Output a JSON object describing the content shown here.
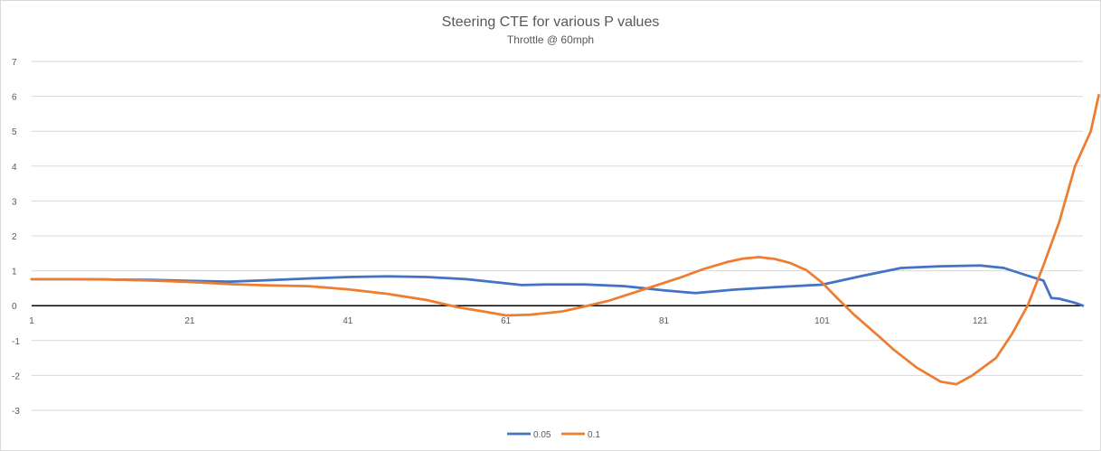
{
  "chart_data": {
    "type": "line",
    "title": "Steering CTE for various P values",
    "subtitle": "Throttle @ 60mph",
    "xlabel": "",
    "ylabel": "",
    "x_range": [
      1,
      134
    ],
    "ylim": [
      -3,
      7
    ],
    "y_ticks": [
      7,
      6,
      5,
      4,
      3,
      2,
      1,
      0,
      -1,
      -2,
      -3
    ],
    "x_tick_labels": [
      1,
      21,
      41,
      61,
      81,
      101,
      121
    ],
    "grid": true,
    "legend_position": "bottom",
    "series": [
      {
        "name": "0.05",
        "color": "#4472c4",
        "points": [
          [
            1,
            0.76
          ],
          [
            6,
            0.76
          ],
          [
            11,
            0.75
          ],
          [
            16,
            0.74
          ],
          [
            21,
            0.71
          ],
          [
            26,
            0.69
          ],
          [
            31,
            0.73
          ],
          [
            36,
            0.78
          ],
          [
            41,
            0.82
          ],
          [
            46,
            0.84
          ],
          [
            51,
            0.82
          ],
          [
            56,
            0.76
          ],
          [
            61,
            0.64
          ],
          [
            63,
            0.59
          ],
          [
            66,
            0.61
          ],
          [
            71,
            0.61
          ],
          [
            76,
            0.56
          ],
          [
            81,
            0.44
          ],
          [
            85,
            0.36
          ],
          [
            90,
            0.46
          ],
          [
            95,
            0.53
          ],
          [
            101,
            0.6
          ],
          [
            106,
            0.85
          ],
          [
            111,
            1.08
          ],
          [
            116,
            1.13
          ],
          [
            121,
            1.15
          ],
          [
            124,
            1.08
          ],
          [
            127,
            0.86
          ],
          [
            129,
            0.72
          ],
          [
            130,
            0.22
          ],
          [
            131,
            0.2
          ],
          [
            133,
            0.08
          ],
          [
            134,
            0.0
          ]
        ]
      },
      {
        "name": "0.1",
        "color": "#ed7d31",
        "points": [
          [
            1,
            0.76
          ],
          [
            6,
            0.76
          ],
          [
            11,
            0.75
          ],
          [
            16,
            0.72
          ],
          [
            21,
            0.68
          ],
          [
            26,
            0.62
          ],
          [
            31,
            0.58
          ],
          [
            36,
            0.56
          ],
          [
            41,
            0.47
          ],
          [
            46,
            0.34
          ],
          [
            51,
            0.16
          ],
          [
            55,
            -0.05
          ],
          [
            58,
            -0.16
          ],
          [
            61,
            -0.28
          ],
          [
            64,
            -0.26
          ],
          [
            68,
            -0.17
          ],
          [
            71,
            -0.02
          ],
          [
            74,
            0.14
          ],
          [
            77,
            0.36
          ],
          [
            80,
            0.58
          ],
          [
            83,
            0.8
          ],
          [
            86,
            1.05
          ],
          [
            89,
            1.25
          ],
          [
            91,
            1.35
          ],
          [
            93,
            1.39
          ],
          [
            95,
            1.34
          ],
          [
            97,
            1.22
          ],
          [
            99,
            1.02
          ],
          [
            101,
            0.66
          ],
          [
            103,
            0.2
          ],
          [
            105,
            -0.25
          ],
          [
            108,
            -0.84
          ],
          [
            110,
            -1.25
          ],
          [
            113,
            -1.78
          ],
          [
            116,
            -2.18
          ],
          [
            118,
            -2.25
          ],
          [
            120,
            -2.0
          ],
          [
            123,
            -1.5
          ],
          [
            125,
            -0.82
          ],
          [
            127,
            0.0
          ],
          [
            129,
            1.15
          ],
          [
            131,
            2.4
          ],
          [
            133,
            4.0
          ],
          [
            135,
            5.0
          ],
          [
            136,
            6.03
          ]
        ]
      }
    ]
  }
}
